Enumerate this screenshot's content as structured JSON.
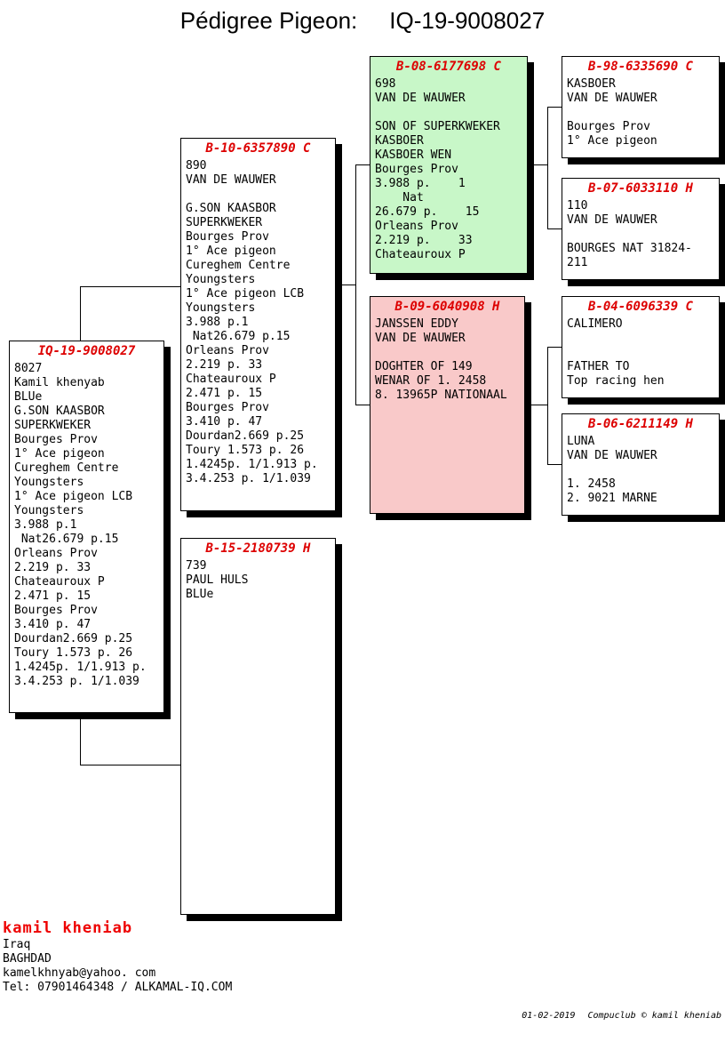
{
  "title": {
    "label": "Pédigree Pigeon:",
    "ring": "IQ-19-9008027"
  },
  "colors": {
    "header_red": "#dd0000",
    "green_bg": "#c8f7c8",
    "pink_bg": "#f9c9c9",
    "owner_red": "#ee0000"
  },
  "boxes": {
    "subject": {
      "header": "IQ-19-9008027",
      "lines": [
        "8027",
        "Kamil khenyab",
        "BLUe",
        "G.SON KAASBOR",
        "SUPERKWEKER",
        "Bourges Prov",
        "1° Ace pigeon",
        "Cureghem Centre",
        "Youngsters",
        "1° Ace pigeon LCB",
        "Youngsters",
        "3.988 p.1",
        " Nat26.679 p.15",
        "Orleans Prov",
        "2.219 p. 33",
        "Chateauroux P",
        "2.471 p. 15",
        "Bourges Prov",
        "3.410 p. 47",
        "Dourdan2.669 p.25",
        "Toury 1.573 p. 26",
        "1.4245p. 1/1.913 p.",
        "3.4.253 p. 1/1.039"
      ]
    },
    "father": {
      "header": "B-10-6357890 C",
      "lines": [
        "890",
        "VAN DE WAUWER",
        "",
        "G.SON KAASBOR",
        "SUPERKWEKER",
        "Bourges Prov",
        "1° Ace pigeon",
        "Cureghem Centre",
        "Youngsters",
        "1° Ace pigeon LCB",
        "Youngsters",
        "3.988 p.1",
        " Nat26.679 p.15",
        "Orleans Prov",
        "2.219 p. 33",
        "Chateauroux P",
        "2.471 p. 15",
        "Bourges Prov",
        "3.410 p. 47",
        "Dourdan2.669 p.25",
        "Toury 1.573 p. 26",
        "1.4245p. 1/1.913 p.",
        "3.4.253 p. 1/1.039"
      ]
    },
    "mother": {
      "header": "B-15-2180739 H",
      "lines": [
        "739",
        "PAUL HULS",
        "BLUe"
      ]
    },
    "grandfather_paternal": {
      "header": "B-08-6177698 C",
      "lines": [
        "698",
        "VAN DE WAUWER",
        "",
        "SON OF SUPERKWEKER",
        "KASBOER",
        "KASBOER WEN",
        "Bourges Prov",
        "3.988 p.    1",
        "    Nat",
        "26.679 p.    15",
        "Orleans Prov",
        "2.219 p.    33",
        "Chateauroux P"
      ]
    },
    "grandmother_paternal": {
      "header": "B-09-6040908 H",
      "lines": [
        "JANSSEN EDDY",
        "VAN DE WAUWER",
        "",
        "DOGHTER OF 149",
        "WENAR OF 1. 2458",
        "8. 13965P NATIONAAL"
      ]
    },
    "great_grandfather_1": {
      "header": "B-98-6335690 C",
      "lines": [
        "KASBOER",
        "VAN DE WAUWER",
        "",
        "Bourges Prov",
        "1° Ace pigeon"
      ]
    },
    "great_grandmother_1": {
      "header": "B-07-6033110 H",
      "lines": [
        "110",
        "VAN DE WAUWER",
        "",
        "BOURGES NAT 31824-",
        "211"
      ]
    },
    "great_grandfather_2": {
      "header": "B-04-6096339 C",
      "lines": [
        "CALIMERO",
        "",
        "",
        "FATHER TO",
        "Top racing hen"
      ]
    },
    "great_grandmother_2": {
      "header": "B-06-6211149 H",
      "lines": [
        "LUNA",
        "VAN DE WAUWER",
        "",
        "1. 2458",
        "2. 9021 MARNE"
      ]
    }
  },
  "owner": {
    "name": "kamil kheniab",
    "country": "Iraq",
    "city": "BAGHDAD",
    "email": "kamelkhnyab@yahoo. com",
    "tel": "Tel: 07901464348 / ALKAMAL-IQ.COM"
  },
  "print_info": {
    "date": "01-02-2019",
    "credit": "Compuclub © kamil kheniab"
  }
}
